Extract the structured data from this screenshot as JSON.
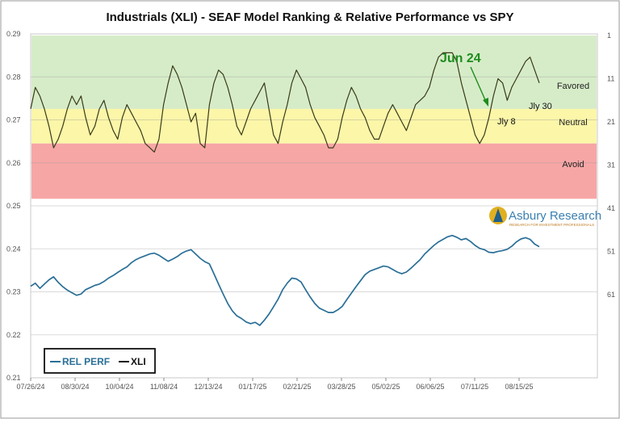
{
  "chart_data": {
    "type": "line",
    "title": "Industrials (XLI) - SEAF Model Ranking & Relative Performance vs SPY",
    "x_tick_labels": [
      "07/26/24",
      "08/30/24",
      "10/04/24",
      "11/08/24",
      "12/13/24",
      "01/17/25",
      "02/21/25",
      "03/28/25",
      "05/02/25",
      "06/06/25",
      "07/11/25",
      "08/15/25"
    ],
    "left_axis": {
      "ticks": [
        "0.21",
        "0.22",
        "0.23",
        "0.24",
        "0.25",
        "0.26",
        "0.27",
        "0.28",
        "0.29"
      ],
      "ylim": [
        0.21,
        0.29
      ]
    },
    "right_axis": {
      "ticks": [
        "1",
        "11",
        "21",
        "31",
        "41",
        "51",
        "61"
      ],
      "ylim": [
        1,
        61
      ],
      "inverted": true
    },
    "zones": [
      {
        "name": "Favored",
        "color": "#d6ecc8"
      },
      {
        "name": "Neutral",
        "color": "#fbf6a8"
      },
      {
        "name": "Avoid",
        "color": "#f7a6a6"
      }
    ],
    "annotations": [
      {
        "text": "Jun 24",
        "color": "#1e8c1e"
      },
      {
        "text": "Jly 8",
        "color": "#111111"
      },
      {
        "text": "Jly 30",
        "color": "#111111"
      }
    ],
    "legend": {
      "placement": "bottom-left",
      "entries": [
        "REL PERF",
        "XLI"
      ]
    },
    "series": [
      {
        "name": "REL PERF",
        "axis": "left",
        "color": "#2a6f97",
        "values": [
          0.2313,
          0.232,
          0.2308,
          0.2318,
          0.2328,
          0.2335,
          0.2322,
          0.2312,
          0.2304,
          0.2298,
          0.2292,
          0.2295,
          0.2305,
          0.231,
          0.2315,
          0.2318,
          0.2324,
          0.2332,
          0.2338,
          0.2345,
          0.2352,
          0.2358,
          0.2368,
          0.2375,
          0.238,
          0.2384,
          0.2388,
          0.239,
          0.2385,
          0.2378,
          0.2371,
          0.2376,
          0.2382,
          0.239,
          0.2395,
          0.2398,
          0.2388,
          0.2378,
          0.237,
          0.2365,
          0.2342,
          0.2318,
          0.2295,
          0.2273,
          0.2256,
          0.2244,
          0.2238,
          0.223,
          0.2226,
          0.2229,
          0.2222,
          0.2234,
          0.2248,
          0.2265,
          0.2283,
          0.2305,
          0.232,
          0.2332,
          0.233,
          0.2323,
          0.2305,
          0.2288,
          0.2273,
          0.2262,
          0.2257,
          0.2252,
          0.2252,
          0.2258,
          0.2266,
          0.2282,
          0.2297,
          0.2312,
          0.2326,
          0.234,
          0.2348,
          0.2352,
          0.2356,
          0.236,
          0.2358,
          0.2352,
          0.2346,
          0.2342,
          0.2346,
          0.2355,
          0.2365,
          0.2375,
          0.2388,
          0.2398,
          0.2408,
          0.2416,
          0.2422,
          0.2428,
          0.2431,
          0.2427,
          0.2421,
          0.2424,
          0.2417,
          0.2408,
          0.2401,
          0.2398,
          0.2392,
          0.2391,
          0.2394,
          0.2396,
          0.2399,
          0.2406,
          0.2416,
          0.2423,
          0.2426,
          0.2422,
          0.2411,
          0.2405
        ]
      },
      {
        "name": "XLI",
        "axis": "right",
        "color": "#3a3a1a",
        "values": [
          18,
          13,
          15,
          18,
          22,
          27,
          25,
          22,
          18,
          15,
          17,
          15,
          20,
          24,
          22,
          18,
          16,
          20,
          23,
          25,
          20,
          17,
          19,
          21,
          23,
          26,
          27,
          28,
          25,
          17,
          12,
          8,
          10,
          13,
          17,
          21,
          19,
          26,
          27,
          17,
          12,
          9,
          10,
          13,
          17,
          22,
          24,
          21,
          18,
          16,
          14,
          12,
          18,
          24,
          26,
          21,
          17,
          12,
          9,
          11,
          13,
          17,
          20,
          22,
          24,
          27,
          27,
          25,
          20,
          16,
          13,
          15,
          18,
          20,
          23,
          25,
          25,
          22,
          19,
          17,
          19,
          21,
          23,
          20,
          17,
          16,
          15,
          13,
          9,
          6,
          5,
          5,
          5,
          7,
          12,
          16,
          20,
          24,
          26,
          24,
          20,
          15,
          11,
          12,
          16,
          13,
          11,
          9,
          7,
          6,
          9,
          12
        ]
      }
    ]
  }
}
